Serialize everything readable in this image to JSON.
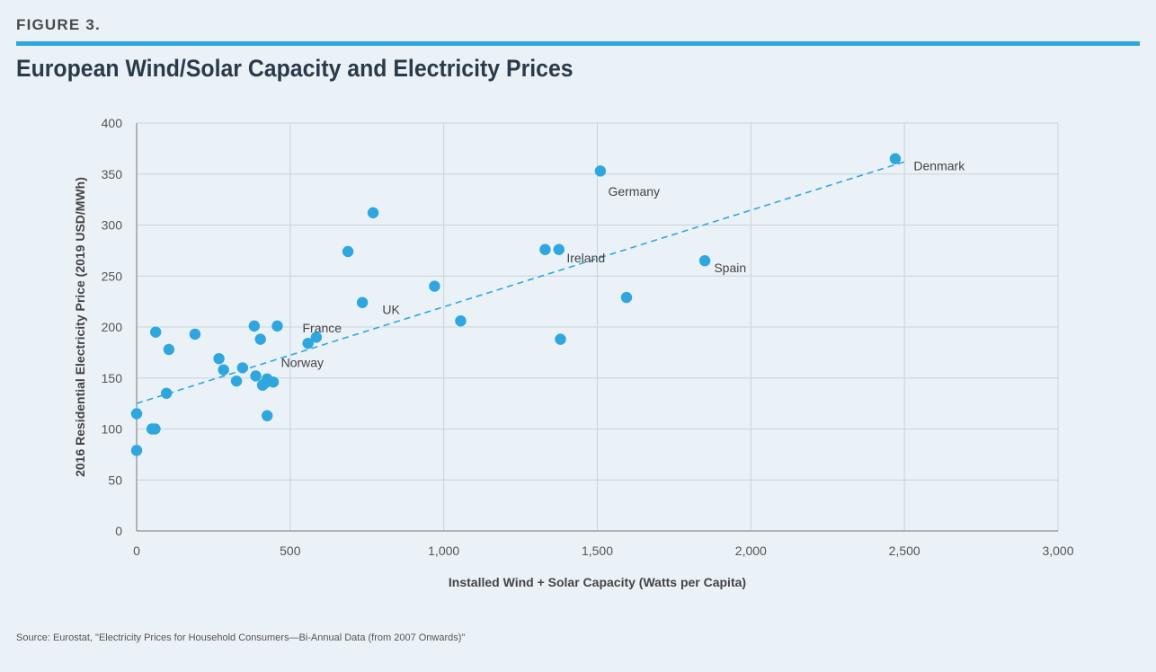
{
  "header": {
    "figure_label": "FIGURE 3.",
    "title": "European Wind/Solar Capacity and Electricity Prices"
  },
  "source": "Source: Eurostat, \"Electricity Prices for Household Consumers—Bi-Annual Data (from 2007 Onwards)\"",
  "colors": {
    "accent": "#2fa7de",
    "point": "#2fa7de",
    "trend": "#2fa7de",
    "grid": "#c9d3dc"
  },
  "chart_data": {
    "type": "scatter",
    "xlabel": "Installed Wind + Solar Capacity (Watts per Capita)",
    "ylabel": "2016 Residential Electricity Price (2019 USD/MWh)",
    "xlim": [
      0,
      3000
    ],
    "ylim": [
      0,
      400
    ],
    "x_ticks": [
      0,
      500,
      1000,
      1500,
      2000,
      2500,
      3000
    ],
    "x_tick_labels": [
      "0",
      "500",
      "1,000",
      "1,500",
      "2,000",
      "2,500",
      "3,000"
    ],
    "y_ticks": [
      0,
      50,
      100,
      150,
      200,
      250,
      300,
      350,
      400
    ],
    "y_tick_labels": [
      "0",
      "50",
      "100",
      "150",
      "200",
      "250",
      "300",
      "350",
      "400"
    ],
    "grid": true,
    "trendline": {
      "style": "dashed",
      "from": [
        0,
        125
      ],
      "to": [
        2500,
        362
      ]
    },
    "points": [
      {
        "x": 0,
        "y": 115
      },
      {
        "x": 0,
        "y": 79
      },
      {
        "x": 50,
        "y": 100
      },
      {
        "x": 60,
        "y": 100
      },
      {
        "x": 62,
        "y": 195
      },
      {
        "x": 97,
        "y": 135
      },
      {
        "x": 105,
        "y": 178
      },
      {
        "x": 190,
        "y": 193
      },
      {
        "x": 268,
        "y": 169
      },
      {
        "x": 283,
        "y": 158
      },
      {
        "x": 325,
        "y": 147
      },
      {
        "x": 345,
        "y": 160
      },
      {
        "x": 383,
        "y": 201
      },
      {
        "x": 388,
        "y": 152
      },
      {
        "x": 403,
        "y": 188
      },
      {
        "x": 410,
        "y": 143
      },
      {
        "x": 418,
        "y": 145
      },
      {
        "x": 425,
        "y": 149
      },
      {
        "x": 425,
        "y": 113
      },
      {
        "x": 445,
        "y": 146
      },
      {
        "x": 458,
        "y": 201
      },
      {
        "x": 558,
        "y": 184
      },
      {
        "x": 585,
        "y": 190
      },
      {
        "x": 688,
        "y": 274
      },
      {
        "x": 735,
        "y": 224
      },
      {
        "x": 770,
        "y": 312
      },
      {
        "x": 970,
        "y": 240
      },
      {
        "x": 1055,
        "y": 206
      },
      {
        "x": 1330,
        "y": 276
      },
      {
        "x": 1375,
        "y": 276
      },
      {
        "x": 1380,
        "y": 188
      },
      {
        "x": 1510,
        "y": 353
      },
      {
        "x": 1595,
        "y": 229
      },
      {
        "x": 1850,
        "y": 265
      },
      {
        "x": 2470,
        "y": 365
      }
    ],
    "annotations": [
      {
        "text": "Denmark",
        "x": 2530,
        "y": 358
      },
      {
        "text": "Germany",
        "x": 1535,
        "y": 333
      },
      {
        "text": "Ireland",
        "x": 1400,
        "y": 268
      },
      {
        "text": "Spain",
        "x": 1880,
        "y": 258
      },
      {
        "text": "UK",
        "x": 800,
        "y": 217
      },
      {
        "text": "France",
        "x": 540,
        "y": 199
      },
      {
        "text": "Norway",
        "x": 470,
        "y": 165
      }
    ]
  }
}
